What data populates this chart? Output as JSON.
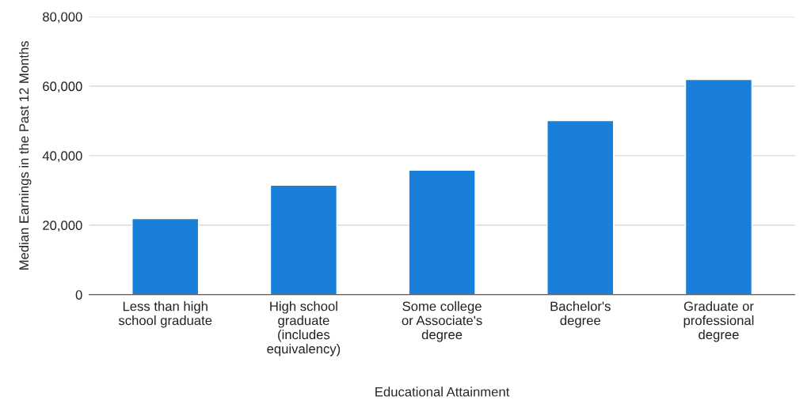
{
  "chart_data": {
    "type": "bar",
    "xlabel": "Educational Attainment",
    "ylabel": "Median Earnings in the Past 12 Months",
    "categories": [
      "Less than high\nschool graduate",
      "High school\ngraduate\n(includes\nequivalency)",
      "Some college\nor Associate's\ndegree",
      "Bachelor's\ndegree",
      "Graduate or\nprofessional\ndegree"
    ],
    "values": [
      21900,
      31500,
      35800,
      50100,
      61900
    ],
    "color": "#1a7fd8",
    "ylim": [
      0,
      80000
    ],
    "yticks": [
      {
        "value": 0,
        "label": "0"
      },
      {
        "value": 20000,
        "label": "20,000"
      },
      {
        "value": 40000,
        "label": "40,000"
      },
      {
        "value": 60000,
        "label": "60,000"
      },
      {
        "value": 80000,
        "label": "80,000"
      }
    ],
    "grid": "y"
  }
}
